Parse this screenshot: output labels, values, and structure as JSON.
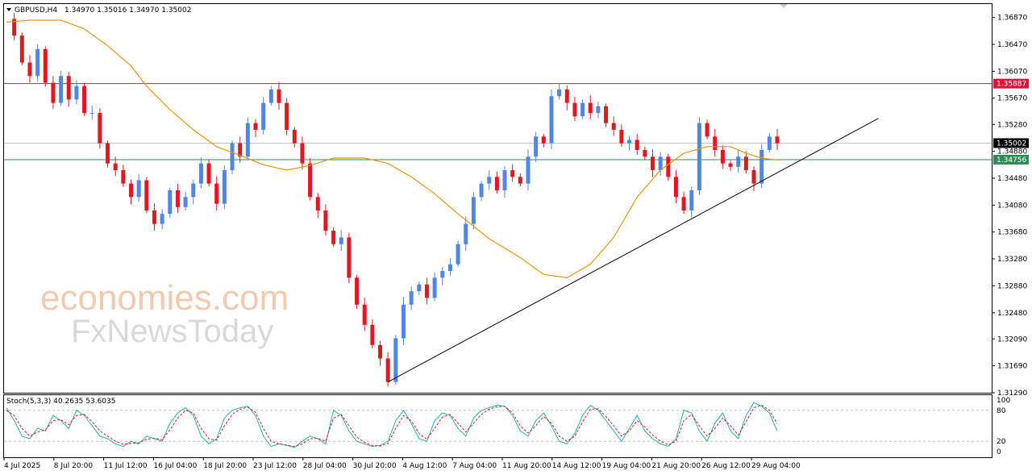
{
  "header": {
    "symbol": "GBPUSD,H4",
    "ohlc": "1.34970 1.35016 1.34970 1.35002"
  },
  "indicator": {
    "label": "Stoch(5,3,3) 40.2635 53.6035",
    "levels": [
      100,
      80,
      20,
      0
    ]
  },
  "watermark": {
    "line1": "economies.com",
    "line2": "FxNewsToday"
  },
  "price_axis": {
    "ticks": [
      "1.36870",
      "1.36470",
      "1.36070",
      "1.35670",
      "1.35280",
      "1.34880",
      "1.34480",
      "1.34080",
      "1.33680",
      "1.33280",
      "1.32880",
      "1.32480",
      "1.32090",
      "1.31690",
      "1.31290"
    ],
    "markers": [
      {
        "value": "1.35887",
        "color": "#dc143c"
      },
      {
        "value": "1.35002",
        "color": "#000000"
      },
      {
        "value": "1.34756",
        "color": "#2e8b57"
      }
    ]
  },
  "time_axis": {
    "labels": [
      "4 Jul 2025",
      "8 Jul 20:00",
      "11 Jul 12:00",
      "16 Jul 04:00",
      "18 Jul 20:00",
      "23 Jul 12:00",
      "28 Jul 04:00",
      "30 Jul 20:00",
      "4 Aug 12:00",
      "7 Aug 04:00",
      "11 Aug 20:00",
      "14 Aug 12:00",
      "19 Aug 04:00",
      "21 Aug 20:00",
      "26 Aug 12:00",
      "29 Aug 04:00"
    ]
  },
  "chart_data": {
    "type": "candlestick",
    "symbol": "GBPUSD",
    "timeframe": "H4",
    "ylim": [
      1.3129,
      1.3707
    ],
    "bull_color": "#4f86e8",
    "bear_color": "#e8141e",
    "ma_color": "#e8960c",
    "price_path": [
      1.3685,
      1.366,
      1.362,
      1.36,
      1.364,
      1.359,
      1.356,
      1.36,
      1.3565,
      1.3585,
      1.3545,
      1.3545,
      1.35,
      1.347,
      1.346,
      1.344,
      1.342,
      1.3445,
      1.34,
      1.338,
      1.3395,
      1.343,
      1.3405,
      1.342,
      1.344,
      1.347,
      1.344,
      1.341,
      1.346,
      1.35,
      1.348,
      1.353,
      1.352,
      1.356,
      1.358,
      1.356,
      1.352,
      1.35,
      1.347,
      1.342,
      1.34,
      1.337,
      1.335,
      1.336,
      1.33,
      1.326,
      1.323,
      1.32,
      1.318,
      1.3145,
      1.321,
      1.326,
      1.328,
      1.329,
      1.327,
      1.33,
      1.331,
      1.332,
      1.335,
      1.338,
      1.342,
      1.344,
      1.345,
      1.343,
      1.346,
      1.345,
      1.344,
      1.348,
      1.351,
      1.35,
      1.357,
      1.358,
      1.356,
      1.354,
      1.356,
      1.3545,
      1.3555,
      1.353,
      1.352,
      1.35,
      1.3505,
      1.349,
      1.348,
      1.346,
      1.348,
      1.345,
      1.342,
      1.34,
      1.343,
      1.353,
      1.351,
      1.349,
      1.347,
      1.3465,
      1.348,
      1.346,
      1.344,
      1.349,
      1.351,
      1.35
    ],
    "ma_path": [
      1.368,
      1.3683,
      1.3683,
      1.367,
      1.3645,
      1.3615,
      1.3585,
      1.355,
      1.352,
      1.3495,
      1.3482,
      1.3468,
      1.346,
      1.3467,
      1.3478,
      1.3478,
      1.347,
      1.345,
      1.3425,
      1.3395,
      1.3358,
      1.333,
      1.3305,
      1.33,
      1.332,
      1.336,
      1.342,
      1.346,
      1.3485,
      1.3495,
      1.3495,
      1.3485,
      1.3478,
      1.3475
    ],
    "ma_x": [
      0,
      3,
      7,
      10,
      13,
      16,
      18,
      21,
      24,
      27,
      30,
      33,
      36,
      39,
      42,
      46,
      49,
      52,
      55,
      58,
      62,
      66,
      69,
      72,
      75,
      78,
      81,
      84,
      87,
      90,
      93,
      95,
      97,
      99
    ],
    "horizontal_lines": [
      {
        "value": 1.35887,
        "color": "#dc143c"
      },
      {
        "value": 1.35002,
        "color": "#c0c0c0"
      },
      {
        "value": 1.34756,
        "color": "#2e8b57"
      }
    ],
    "trendline": {
      "from_index": 49,
      "from_value": 1.3145,
      "to_index": 112,
      "to_value": 1.3537
    },
    "stochastic": {
      "k": 40.2635,
      "d": 53.6035,
      "k_path": [
        85,
        60,
        30,
        25,
        45,
        40,
        70,
        60,
        45,
        80,
        70,
        50,
        30,
        25,
        15,
        10,
        20,
        15,
        30,
        25,
        20,
        55,
        75,
        85,
        70,
        30,
        15,
        25,
        65,
        80,
        85,
        88,
        70,
        30,
        10,
        15,
        12,
        8,
        20,
        30,
        25,
        15,
        80,
        70,
        40,
        20,
        15,
        10,
        12,
        20,
        60,
        80,
        55,
        25,
        20,
        60,
        75,
        70,
        45,
        30,
        65,
        80,
        85,
        90,
        88,
        70,
        40,
        30,
        60,
        75,
        50,
        20,
        15,
        35,
        70,
        90,
        80,
        60,
        40,
        20,
        45,
        70,
        40,
        25,
        15,
        10,
        25,
        80,
        75,
        40,
        20,
        55,
        75,
        40,
        25,
        70,
        95,
        88,
        75,
        40
      ],
      "d_path": [
        80,
        70,
        45,
        30,
        38,
        42,
        60,
        62,
        52,
        70,
        72,
        58,
        40,
        30,
        20,
        14,
        16,
        17,
        24,
        26,
        23,
        42,
        65,
        80,
        75,
        45,
        25,
        22,
        50,
        72,
        82,
        86,
        76,
        45,
        20,
        15,
        13,
        10,
        15,
        25,
        26,
        20,
        65,
        72,
        50,
        28,
        18,
        12,
        11,
        16,
        45,
        70,
        60,
        35,
        24,
        45,
        67,
        72,
        55,
        38,
        55,
        72,
        82,
        87,
        88,
        75,
        50,
        36,
        50,
        68,
        55,
        30,
        20,
        30,
        58,
        82,
        83,
        68,
        50,
        30,
        40,
        60,
        48,
        32,
        20,
        13,
        20,
        60,
        72,
        50,
        30,
        45,
        65,
        50,
        32,
        58,
        85,
        90,
        80,
        54
      ]
    }
  }
}
